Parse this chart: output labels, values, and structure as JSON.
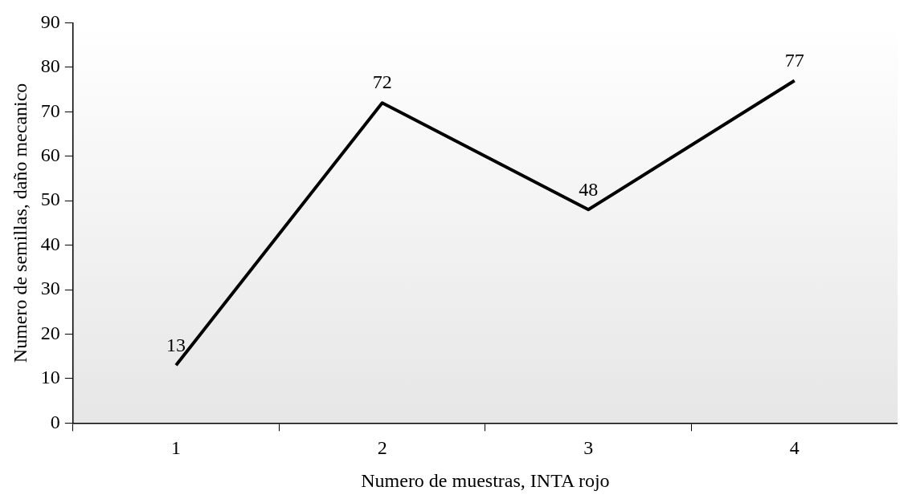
{
  "chart_data": {
    "type": "line",
    "xlabel": "Numero de muestras, INTA rojo",
    "ylabel": "Numero de semillas, daño mecanico",
    "categories": [
      "1",
      "2",
      "3",
      "4"
    ],
    "series": [
      {
        "color": "#000000",
        "values": [
          13,
          72,
          48,
          77
        ]
      }
    ],
    "ylim": [
      0,
      90
    ],
    "yticks": [
      0,
      10,
      20,
      30,
      40,
      50,
      60,
      70,
      80,
      90
    ],
    "grid": false,
    "legend": false,
    "marker": "none",
    "line_style": "solid",
    "data_labels": true
  }
}
